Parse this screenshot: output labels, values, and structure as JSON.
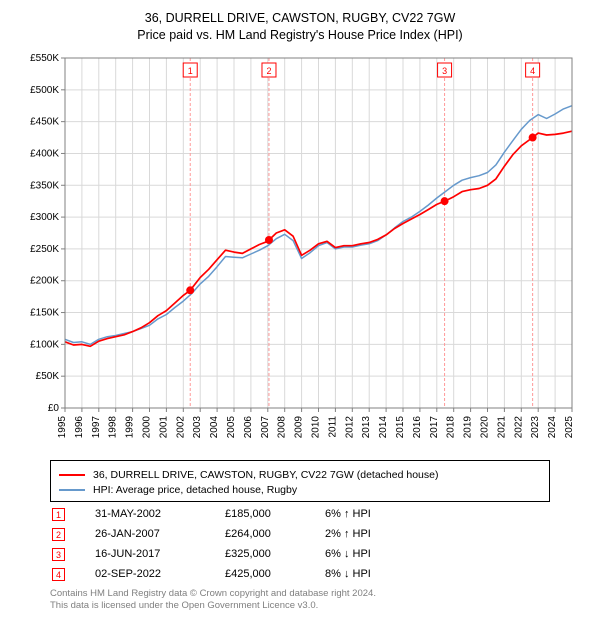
{
  "title_line1": "36, DURRELL DRIVE, CAWSTON, RUGBY, CV22 7GW",
  "title_line2": "Price paid vs. HM Land Registry's House Price Index (HPI)",
  "title_fontsize": 12.5,
  "chart": {
    "type": "line",
    "background_color": "#ffffff",
    "plot_border_color": "#808080",
    "grid_color": "#d9d9d9",
    "marker_guideline_color": "#ff9999",
    "marker_box_border": "#ff0000",
    "marker_box_text_color": "#ff0000",
    "axis_font_color": "#000000",
    "axis_fontsize": 10,
    "x": {
      "min": 1995,
      "max": 2025,
      "tick_step": 1
    },
    "y": {
      "min": 0,
      "max": 550000,
      "tick_step": 50000,
      "tick_labels": [
        "£0",
        "£50K",
        "£100K",
        "£150K",
        "£200K",
        "£250K",
        "£300K",
        "£350K",
        "£400K",
        "£450K",
        "£500K",
        "£550K"
      ]
    },
    "series": [
      {
        "name": "36, DURRELL DRIVE, CAWSTON, RUGBY, CV22 7GW (detached house)",
        "color": "#ff0000",
        "line_width": 1.7,
        "x": [
          1995,
          1995.5,
          1996,
          1996.5,
          1997,
          1997.5,
          1998,
          1998.5,
          1999,
          1999.5,
          2000,
          2000.5,
          2001,
          2001.5,
          2002,
          2002.41,
          2003,
          2003.5,
          2004,
          2004.5,
          2005,
          2005.5,
          2006,
          2006.5,
          2007,
          2007.07,
          2007.5,
          2008,
          2008.5,
          2009,
          2009.5,
          2010,
          2010.5,
          2011,
          2011.5,
          2012,
          2012.5,
          2013,
          2013.5,
          2014,
          2014.5,
          2015,
          2015.5,
          2016,
          2016.5,
          2017,
          2017.46,
          2018,
          2018.5,
          2019,
          2019.5,
          2020,
          2020.5,
          2021,
          2021.5,
          2022,
          2022.67,
          2023,
          2023.5,
          2024,
          2024.5,
          2025
        ],
        "y": [
          104000,
          99000,
          100000,
          97000,
          105000,
          109000,
          112000,
          115000,
          120000,
          126000,
          134000,
          145000,
          153000,
          165000,
          177000,
          185000,
          205000,
          218000,
          233000,
          248000,
          245000,
          243000,
          250000,
          257000,
          262000,
          264000,
          275000,
          280000,
          270000,
          240000,
          248000,
          258000,
          262000,
          252000,
          255000,
          255000,
          258000,
          260000,
          265000,
          272000,
          282000,
          290000,
          297000,
          304000,
          312000,
          320000,
          325000,
          332000,
          340000,
          343000,
          345000,
          350000,
          360000,
          380000,
          398000,
          412000,
          425000,
          432000,
          429000,
          430000,
          432000,
          435000
        ]
      },
      {
        "name": "HPI: Average price, detached house, Rugby",
        "color": "#6699cc",
        "line_width": 1.5,
        "x": [
          1995,
          1995.5,
          1996,
          1996.5,
          1997,
          1997.5,
          1998,
          1998.5,
          1999,
          1999.5,
          2000,
          2000.5,
          2001,
          2001.5,
          2002,
          2002.5,
          2003,
          2003.5,
          2004,
          2004.5,
          2005,
          2005.5,
          2006,
          2006.5,
          2007,
          2007.5,
          2008,
          2008.5,
          2009,
          2009.5,
          2010,
          2010.5,
          2011,
          2011.5,
          2012,
          2012.5,
          2013,
          2013.5,
          2014,
          2014.5,
          2015,
          2015.5,
          2016,
          2016.5,
          2017,
          2017.5,
          2018,
          2018.5,
          2019,
          2019.5,
          2020,
          2020.5,
          2021,
          2021.5,
          2022,
          2022.5,
          2023,
          2023.5,
          2024,
          2024.5,
          2025
        ],
        "y": [
          108000,
          103000,
          104000,
          100000,
          108000,
          112000,
          114000,
          117000,
          120000,
          125000,
          130000,
          140000,
          147000,
          158000,
          168000,
          180000,
          195000,
          207000,
          222000,
          238000,
          237000,
          236000,
          242000,
          248000,
          255000,
          266000,
          273000,
          263000,
          235000,
          244000,
          255000,
          260000,
          250000,
          253000,
          253000,
          256000,
          258000,
          263000,
          272000,
          283000,
          293000,
          300000,
          309000,
          319000,
          330000,
          340000,
          350000,
          358000,
          362000,
          365000,
          370000,
          382000,
          402000,
          420000,
          438000,
          452000,
          461000,
          455000,
          462000,
          470000,
          475000
        ]
      }
    ],
    "transaction_markers": [
      {
        "n": "1",
        "x": 2002.41,
        "y": 185000
      },
      {
        "n": "2",
        "x": 2007.07,
        "y": 264000
      },
      {
        "n": "3",
        "x": 2017.46,
        "y": 325000
      },
      {
        "n": "4",
        "x": 2022.67,
        "y": 425000
      }
    ],
    "transaction_dot_color": "#ff0000",
    "transaction_dot_radius": 4
  },
  "legend": {
    "border_color": "#000000",
    "fontsize": 10.5,
    "items": [
      {
        "color": "#ff0000",
        "label": "36, DURRELL DRIVE, CAWSTON, RUGBY, CV22 7GW (detached house)"
      },
      {
        "color": "#6699cc",
        "label": "HPI: Average price, detached house, Rugby"
      }
    ]
  },
  "transactions": {
    "fontsize": 11,
    "rows": [
      {
        "n": "1",
        "date": "31-MAY-2002",
        "price": "£185,000",
        "delta": "6% ↑ HPI"
      },
      {
        "n": "2",
        "date": "26-JAN-2007",
        "price": "£264,000",
        "delta": "2% ↑ HPI"
      },
      {
        "n": "3",
        "date": "16-JUN-2017",
        "price": "£325,000",
        "delta": "6% ↓ HPI"
      },
      {
        "n": "4",
        "date": "02-SEP-2022",
        "price": "£425,000",
        "delta": "8% ↓ HPI"
      }
    ]
  },
  "footer": {
    "color": "#808080",
    "fontsize": 9.5,
    "line1": "Contains HM Land Registry data © Crown copyright and database right 2024.",
    "line2": "This data is licensed under the Open Government Licence v3.0."
  }
}
